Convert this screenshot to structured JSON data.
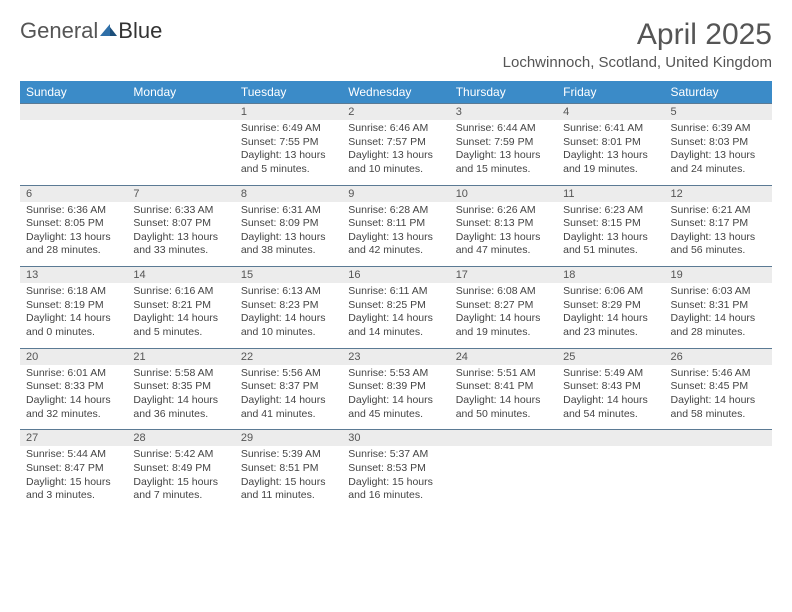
{
  "logo": {
    "part1": "General",
    "part2": "Blue"
  },
  "title": {
    "month": "April 2025",
    "location": "Lochwinnoch, Scotland, United Kingdom"
  },
  "colors": {
    "header_bg": "#3b8bc8",
    "header_text": "#ffffff",
    "daynum_bg": "#ececec",
    "daynum_text": "#555555",
    "row_border": "#5b7a94",
    "body_text": "#444444",
    "logo_blue": "#2f6fa8"
  },
  "daynames": [
    "Sunday",
    "Monday",
    "Tuesday",
    "Wednesday",
    "Thursday",
    "Friday",
    "Saturday"
  ],
  "weeks": [
    [
      {
        "num": "",
        "lines": []
      },
      {
        "num": "",
        "lines": []
      },
      {
        "num": "1",
        "lines": [
          "Sunrise: 6:49 AM",
          "Sunset: 7:55 PM",
          "Daylight: 13 hours",
          "and 5 minutes."
        ]
      },
      {
        "num": "2",
        "lines": [
          "Sunrise: 6:46 AM",
          "Sunset: 7:57 PM",
          "Daylight: 13 hours",
          "and 10 minutes."
        ]
      },
      {
        "num": "3",
        "lines": [
          "Sunrise: 6:44 AM",
          "Sunset: 7:59 PM",
          "Daylight: 13 hours",
          "and 15 minutes."
        ]
      },
      {
        "num": "4",
        "lines": [
          "Sunrise: 6:41 AM",
          "Sunset: 8:01 PM",
          "Daylight: 13 hours",
          "and 19 minutes."
        ]
      },
      {
        "num": "5",
        "lines": [
          "Sunrise: 6:39 AM",
          "Sunset: 8:03 PM",
          "Daylight: 13 hours",
          "and 24 minutes."
        ]
      }
    ],
    [
      {
        "num": "6",
        "lines": [
          "Sunrise: 6:36 AM",
          "Sunset: 8:05 PM",
          "Daylight: 13 hours",
          "and 28 minutes."
        ]
      },
      {
        "num": "7",
        "lines": [
          "Sunrise: 6:33 AM",
          "Sunset: 8:07 PM",
          "Daylight: 13 hours",
          "and 33 minutes."
        ]
      },
      {
        "num": "8",
        "lines": [
          "Sunrise: 6:31 AM",
          "Sunset: 8:09 PM",
          "Daylight: 13 hours",
          "and 38 minutes."
        ]
      },
      {
        "num": "9",
        "lines": [
          "Sunrise: 6:28 AM",
          "Sunset: 8:11 PM",
          "Daylight: 13 hours",
          "and 42 minutes."
        ]
      },
      {
        "num": "10",
        "lines": [
          "Sunrise: 6:26 AM",
          "Sunset: 8:13 PM",
          "Daylight: 13 hours",
          "and 47 minutes."
        ]
      },
      {
        "num": "11",
        "lines": [
          "Sunrise: 6:23 AM",
          "Sunset: 8:15 PM",
          "Daylight: 13 hours",
          "and 51 minutes."
        ]
      },
      {
        "num": "12",
        "lines": [
          "Sunrise: 6:21 AM",
          "Sunset: 8:17 PM",
          "Daylight: 13 hours",
          "and 56 minutes."
        ]
      }
    ],
    [
      {
        "num": "13",
        "lines": [
          "Sunrise: 6:18 AM",
          "Sunset: 8:19 PM",
          "Daylight: 14 hours",
          "and 0 minutes."
        ]
      },
      {
        "num": "14",
        "lines": [
          "Sunrise: 6:16 AM",
          "Sunset: 8:21 PM",
          "Daylight: 14 hours",
          "and 5 minutes."
        ]
      },
      {
        "num": "15",
        "lines": [
          "Sunrise: 6:13 AM",
          "Sunset: 8:23 PM",
          "Daylight: 14 hours",
          "and 10 minutes."
        ]
      },
      {
        "num": "16",
        "lines": [
          "Sunrise: 6:11 AM",
          "Sunset: 8:25 PM",
          "Daylight: 14 hours",
          "and 14 minutes."
        ]
      },
      {
        "num": "17",
        "lines": [
          "Sunrise: 6:08 AM",
          "Sunset: 8:27 PM",
          "Daylight: 14 hours",
          "and 19 minutes."
        ]
      },
      {
        "num": "18",
        "lines": [
          "Sunrise: 6:06 AM",
          "Sunset: 8:29 PM",
          "Daylight: 14 hours",
          "and 23 minutes."
        ]
      },
      {
        "num": "19",
        "lines": [
          "Sunrise: 6:03 AM",
          "Sunset: 8:31 PM",
          "Daylight: 14 hours",
          "and 28 minutes."
        ]
      }
    ],
    [
      {
        "num": "20",
        "lines": [
          "Sunrise: 6:01 AM",
          "Sunset: 8:33 PM",
          "Daylight: 14 hours",
          "and 32 minutes."
        ]
      },
      {
        "num": "21",
        "lines": [
          "Sunrise: 5:58 AM",
          "Sunset: 8:35 PM",
          "Daylight: 14 hours",
          "and 36 minutes."
        ]
      },
      {
        "num": "22",
        "lines": [
          "Sunrise: 5:56 AM",
          "Sunset: 8:37 PM",
          "Daylight: 14 hours",
          "and 41 minutes."
        ]
      },
      {
        "num": "23",
        "lines": [
          "Sunrise: 5:53 AM",
          "Sunset: 8:39 PM",
          "Daylight: 14 hours",
          "and 45 minutes."
        ]
      },
      {
        "num": "24",
        "lines": [
          "Sunrise: 5:51 AM",
          "Sunset: 8:41 PM",
          "Daylight: 14 hours",
          "and 50 minutes."
        ]
      },
      {
        "num": "25",
        "lines": [
          "Sunrise: 5:49 AM",
          "Sunset: 8:43 PM",
          "Daylight: 14 hours",
          "and 54 minutes."
        ]
      },
      {
        "num": "26",
        "lines": [
          "Sunrise: 5:46 AM",
          "Sunset: 8:45 PM",
          "Daylight: 14 hours",
          "and 58 minutes."
        ]
      }
    ],
    [
      {
        "num": "27",
        "lines": [
          "Sunrise: 5:44 AM",
          "Sunset: 8:47 PM",
          "Daylight: 15 hours",
          "and 3 minutes."
        ]
      },
      {
        "num": "28",
        "lines": [
          "Sunrise: 5:42 AM",
          "Sunset: 8:49 PM",
          "Daylight: 15 hours",
          "and 7 minutes."
        ]
      },
      {
        "num": "29",
        "lines": [
          "Sunrise: 5:39 AM",
          "Sunset: 8:51 PM",
          "Daylight: 15 hours",
          "and 11 minutes."
        ]
      },
      {
        "num": "30",
        "lines": [
          "Sunrise: 5:37 AM",
          "Sunset: 8:53 PM",
          "Daylight: 15 hours",
          "and 16 minutes."
        ]
      },
      {
        "num": "",
        "lines": []
      },
      {
        "num": "",
        "lines": []
      },
      {
        "num": "",
        "lines": []
      }
    ]
  ]
}
